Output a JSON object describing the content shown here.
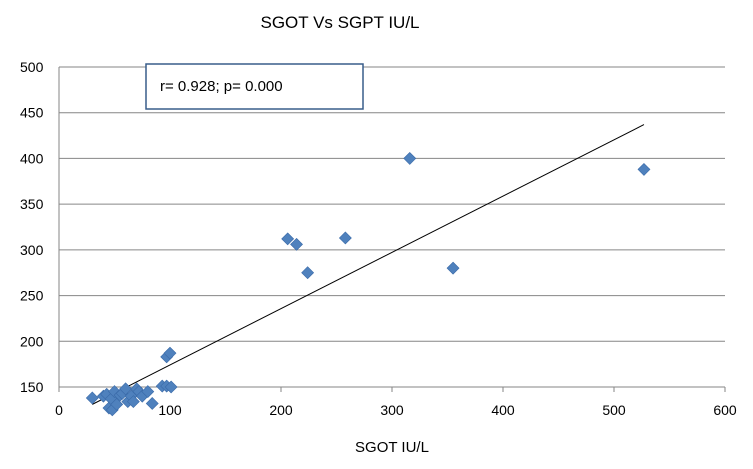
{
  "chart_data": {
    "type": "scatter",
    "title": "SGOT Vs SGPT IU/L",
    "xlabel": "SGOT IU/L",
    "ylabel": "",
    "xlim": [
      0,
      600
    ],
    "ylim": [
      150,
      500
    ],
    "x_ticks": [
      "0",
      "100",
      "200",
      "300",
      "400",
      "500",
      "600"
    ],
    "y_ticks": [
      "150",
      "200",
      "250",
      "300",
      "350",
      "400",
      "450",
      "500"
    ],
    "grid": "horizontal",
    "annotation": "r= 0.928;  p= 0.000",
    "marker_color": "#4f81bd",
    "trendline_color": "#000000",
    "trendline": {
      "x": [
        30,
        527
      ],
      "y": [
        131,
        437
      ]
    },
    "series": [
      {
        "points": [
          [
            30,
            138
          ],
          [
            40,
            140
          ],
          [
            43,
            142
          ],
          [
            45,
            127
          ],
          [
            47,
            137
          ],
          [
            48,
            125
          ],
          [
            50,
            145
          ],
          [
            52,
            131
          ],
          [
            55,
            141
          ],
          [
            57,
            143
          ],
          [
            60,
            148
          ],
          [
            62,
            134
          ],
          [
            65,
            140
          ],
          [
            67,
            134
          ],
          [
            70,
            148
          ],
          [
            72,
            145
          ],
          [
            75,
            140
          ],
          [
            80,
            145
          ],
          [
            84,
            132
          ],
          [
            93,
            151
          ],
          [
            97,
            151
          ],
          [
            97,
            183
          ],
          [
            100,
            187
          ],
          [
            101,
            150
          ],
          [
            206,
            312
          ],
          [
            214,
            306
          ],
          [
            224,
            275
          ],
          [
            258,
            313
          ],
          [
            316,
            400
          ],
          [
            355,
            280
          ],
          [
            527,
            388
          ]
        ]
      }
    ]
  }
}
